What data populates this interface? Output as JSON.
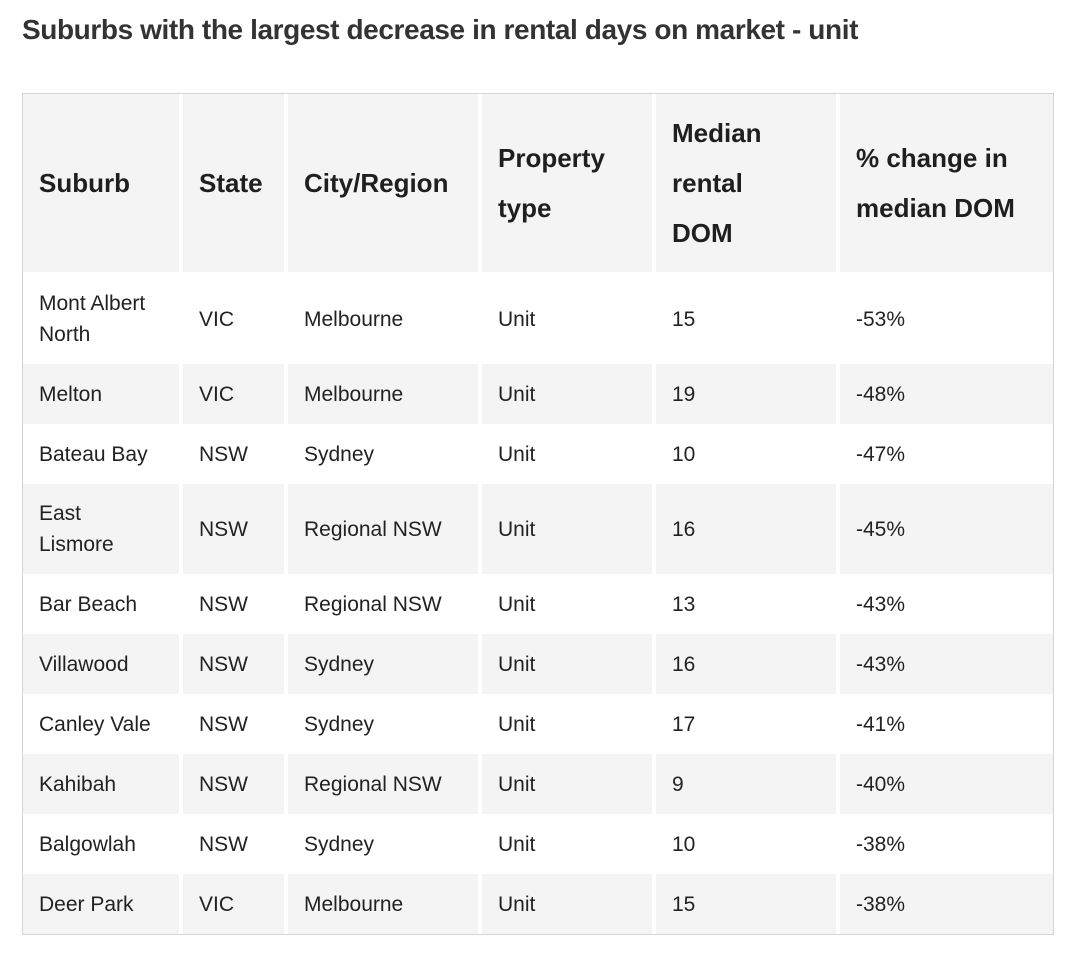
{
  "title": "Suburbs with the largest decrease in rental days on market - unit",
  "table": {
    "headers": [
      "Suburb",
      "State",
      "City/Region",
      "Property type",
      "Median rental DOM",
      "% change in median DOM"
    ],
    "rows": [
      [
        "Mont Albert North",
        "VIC",
        "Melbourne",
        "Unit",
        "15",
        "-53%"
      ],
      [
        "Melton",
        "VIC",
        "Melbourne",
        "Unit",
        "19",
        "-48%"
      ],
      [
        "Bateau Bay",
        "NSW",
        "Sydney",
        "Unit",
        "10",
        "-47%"
      ],
      [
        "East Lismore",
        "NSW",
        "Regional NSW",
        "Unit",
        "16",
        "-45%"
      ],
      [
        "Bar Beach",
        "NSW",
        "Regional NSW",
        "Unit",
        "13",
        "-43%"
      ],
      [
        "Villawood",
        "NSW",
        "Sydney",
        "Unit",
        "16",
        "-43%"
      ],
      [
        "Canley Vale",
        "NSW",
        "Sydney",
        "Unit",
        "17",
        "-41%"
      ],
      [
        "Kahibah",
        "NSW",
        "Regional NSW",
        "Unit",
        "9",
        "-40%"
      ],
      [
        "Balgowlah",
        "NSW",
        "Sydney",
        "Unit",
        "10",
        "-38%"
      ],
      [
        "Deer Park",
        "VIC",
        "Melbourne",
        "Unit",
        "15",
        "-38%"
      ]
    ]
  }
}
